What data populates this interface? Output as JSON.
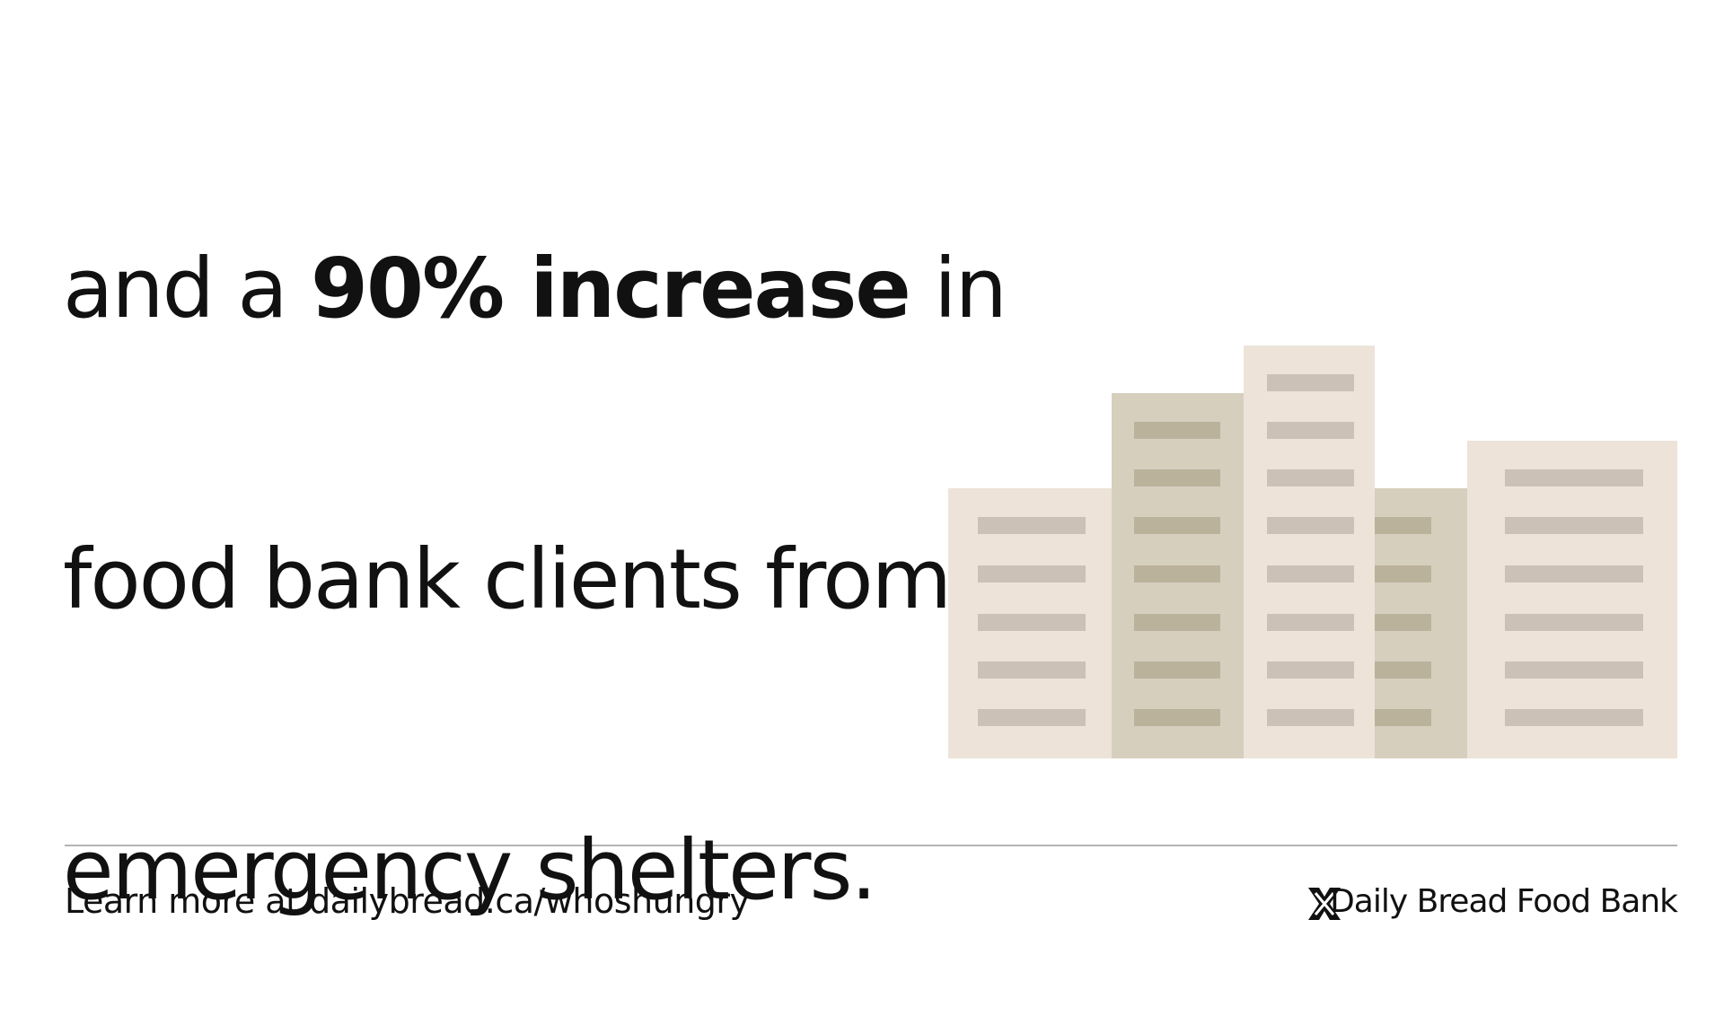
{
  "headline": {
    "lines": [
      [
        "and a ",
        "90% increase",
        " in"
      ],
      [
        "food bank clients from"
      ],
      [
        "emergency shelters."
      ]
    ]
  },
  "footer": {
    "learn_more": "Learn more at dailybread.ca/whoshungry",
    "brand": "Daily Bread Food Bank"
  }
}
